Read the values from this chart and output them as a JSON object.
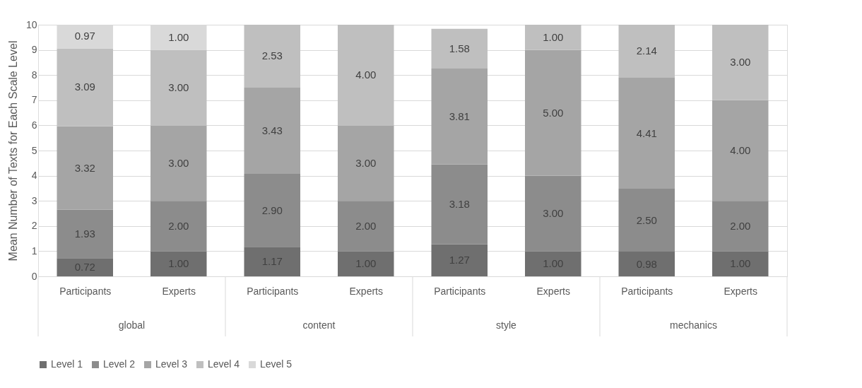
{
  "chart_data": {
    "type": "bar",
    "stacked": true,
    "ylabel": "Mean Number of Texts for Each Scale Level",
    "categories": [
      "Participants",
      "Experts",
      "Participants",
      "Experts",
      "Participants",
      "Experts",
      "Participants",
      "Experts"
    ],
    "annotations": [
      "global",
      "content",
      "style",
      "mechanics"
    ],
    "series": [
      {
        "name": "Level 1",
        "color": "#6f6f6f",
        "values": [
          0.72,
          1,
          1.17,
          1,
          1.27,
          1,
          0.98,
          1
        ],
        "value_labels": [
          "0.72",
          "1.00",
          "1.17",
          "1.00",
          "1.27",
          "1.00",
          "0.98",
          "1.00"
        ]
      },
      {
        "name": "Level 2",
        "color": "#8c8c8c",
        "values": [
          1.93,
          2,
          2.9,
          2,
          3.18,
          3,
          2.5,
          2
        ],
        "value_labels": [
          "1.93",
          "2.00",
          "2.90",
          "2.00",
          "3.18",
          "3.00",
          "2.50",
          "2.00"
        ]
      },
      {
        "name": "Level 3",
        "color": "#a5a5a5",
        "values": [
          3.32,
          3,
          3.43,
          3,
          3.81,
          5,
          4.41,
          4
        ],
        "value_labels": [
          "3.32",
          "3.00",
          "3.43",
          "3.00",
          "3.81",
          "5.00",
          "4.41",
          "4.00"
        ]
      },
      {
        "name": "Level 4",
        "color": "#bfbfbf",
        "values": [
          3.09,
          3,
          2.53,
          4,
          1.58,
          1,
          2.14,
          3
        ],
        "value_labels": [
          "3.09",
          "3.00",
          "2.53",
          "4.00",
          "1.58",
          "1.00",
          "2.14",
          "3.00"
        ]
      },
      {
        "name": "Level 5",
        "color": "#d9d9d9",
        "values": [
          0.97,
          1,
          null,
          null,
          null,
          null,
          null,
          null
        ],
        "value_labels": [
          "0.97",
          "1.00",
          null,
          null,
          null,
          null,
          null,
          null
        ]
      }
    ],
    "ylim": [
      0,
      10
    ],
    "yticks": [
      0,
      1,
      2,
      3,
      4,
      5,
      6,
      7,
      8,
      9,
      10
    ],
    "grid": "y",
    "legend": "bottom"
  }
}
